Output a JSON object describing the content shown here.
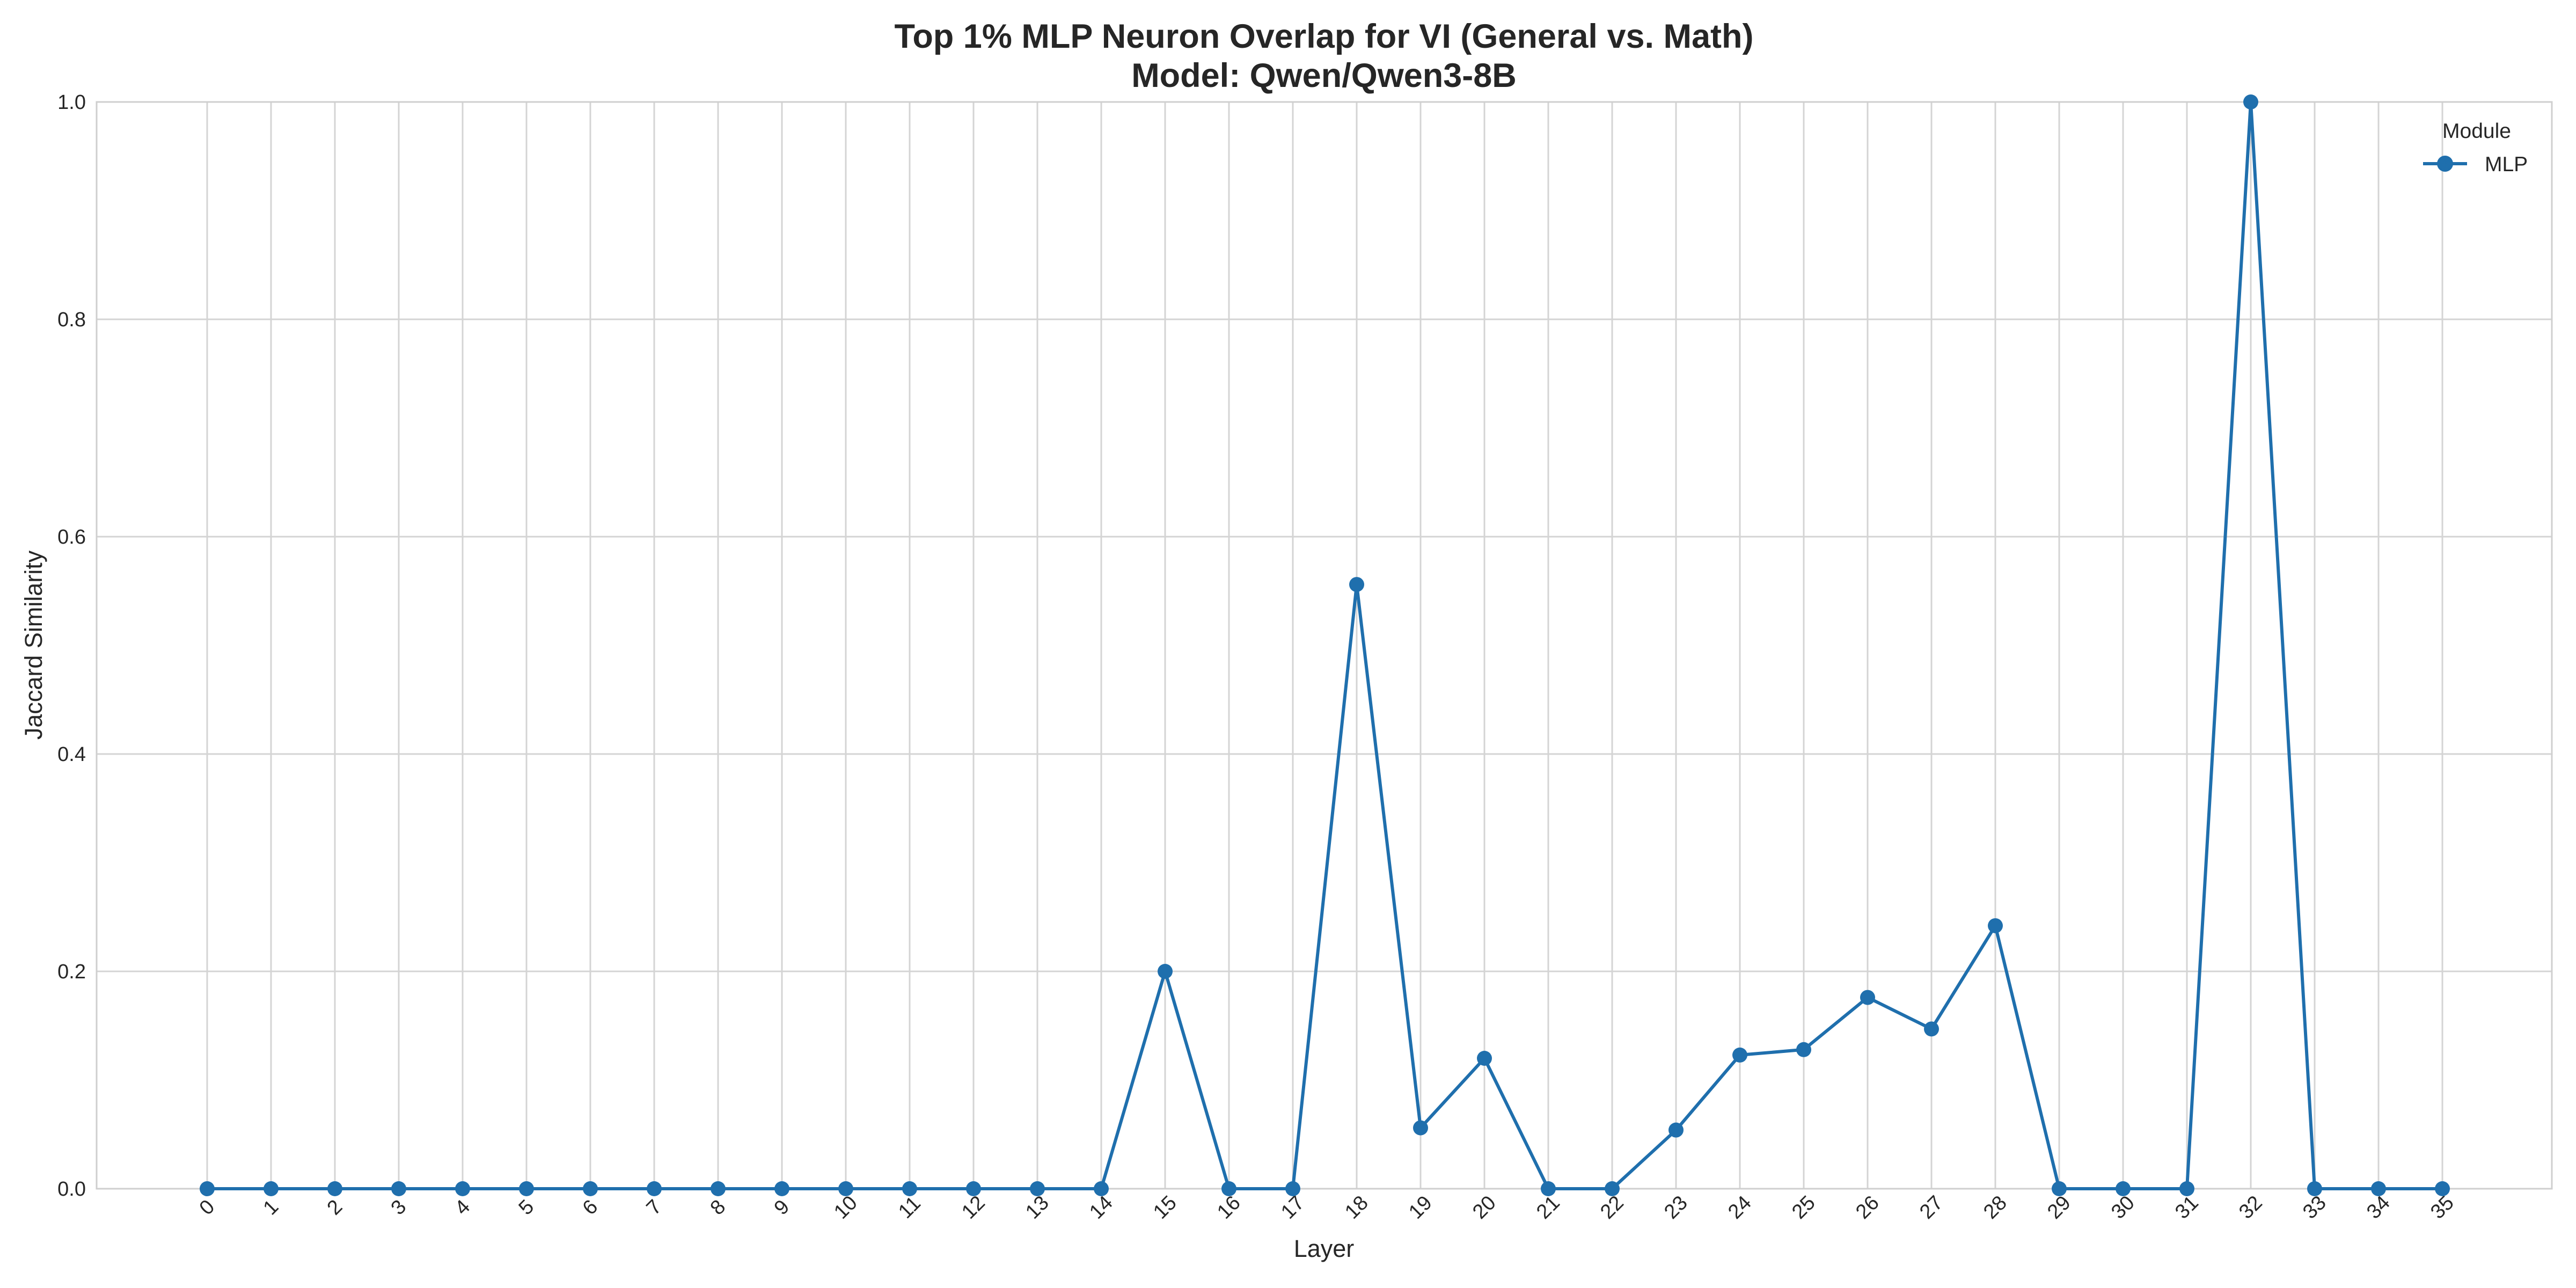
{
  "chart_data": {
    "type": "line",
    "title_line1": "Top 1% MLP Neuron Overlap for VI (General vs. Math)",
    "title_line2": "Model: Qwen/Qwen3-8B",
    "xlabel": "Layer",
    "ylabel": "Jaccard Similarity",
    "x": [
      0,
      1,
      2,
      3,
      4,
      5,
      6,
      7,
      8,
      9,
      10,
      11,
      12,
      13,
      14,
      15,
      16,
      17,
      18,
      19,
      20,
      21,
      22,
      23,
      24,
      25,
      26,
      27,
      28,
      29,
      30,
      31,
      32,
      33,
      34,
      35
    ],
    "x_tick_labels": [
      "0",
      "1",
      "2",
      "3",
      "4",
      "5",
      "6",
      "7",
      "8",
      "9",
      "10",
      "11",
      "12",
      "13",
      "14",
      "15",
      "16",
      "17",
      "18",
      "19",
      "20",
      "21",
      "22",
      "23",
      "24",
      "25",
      "26",
      "27",
      "28",
      "29",
      "30",
      "31",
      "32",
      "33",
      "34",
      "35"
    ],
    "ylim": [
      0,
      1.0
    ],
    "y_ticks": [
      0.0,
      0.2,
      0.4,
      0.6,
      0.8,
      1.0
    ],
    "y_tick_labels": [
      "0.0",
      "0.2",
      "0.4",
      "0.6",
      "0.8",
      "1.0"
    ],
    "grid": true,
    "legend": {
      "title": "Module",
      "placement": "top-right"
    },
    "series": [
      {
        "name": "MLP",
        "color": "#1f6fad",
        "values": [
          0,
          0,
          0,
          0,
          0,
          0,
          0,
          0,
          0,
          0,
          0,
          0,
          0,
          0,
          0,
          0.2,
          0,
          0,
          0.556,
          0.056,
          0.12,
          0,
          0,
          0.054,
          0.123,
          0.128,
          0.176,
          0.147,
          0.242,
          0,
          0,
          0,
          1.0,
          0,
          0,
          0
        ]
      }
    ]
  }
}
